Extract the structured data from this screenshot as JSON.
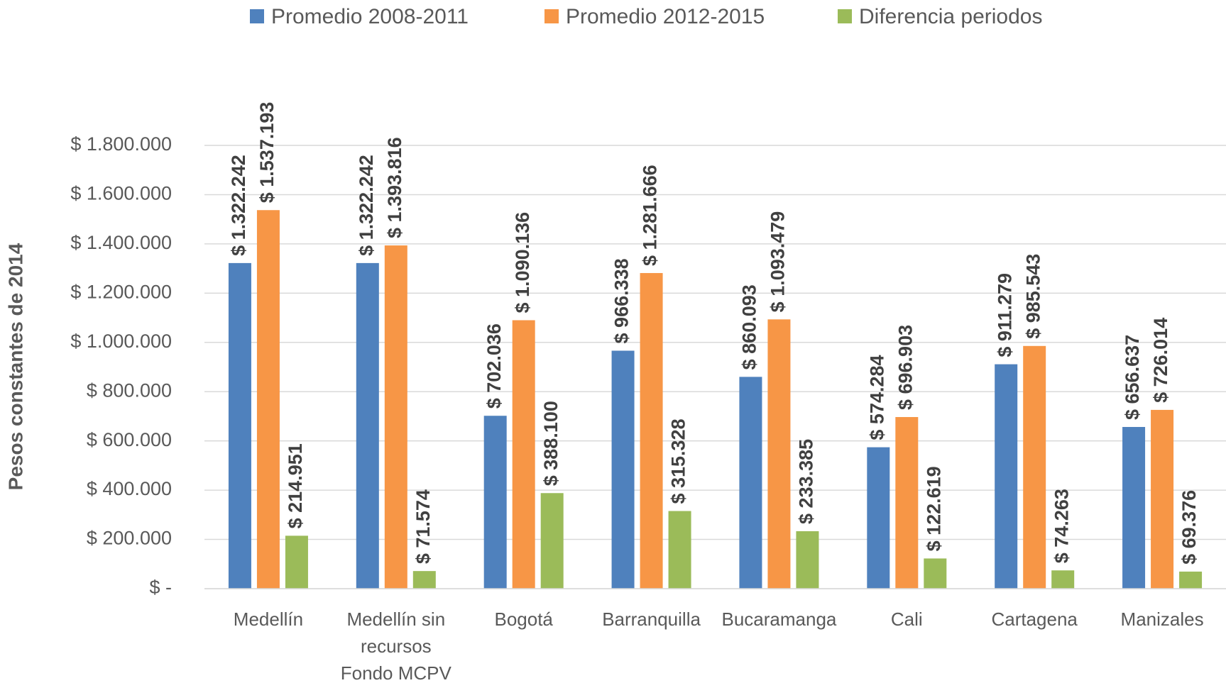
{
  "chart_data": {
    "type": "bar",
    "y_label": "Pesos constantes de 2014",
    "categories": [
      "Medellín",
      "Medellín sin recursos Fondo MCPV",
      "Bogotá",
      "Barranquilla",
      "Bucaramanga",
      "Cali",
      "Cartagena",
      "Manizales"
    ],
    "series": [
      {
        "name": "Promedio 2008-2011",
        "color": "#4f81bd",
        "values": [
          1322242,
          1322242,
          702036,
          966338,
          860093,
          574284,
          911279,
          656637
        ],
        "value_labels": [
          "$ 1.322.242",
          "$ 1.322.242",
          "$ 702.036",
          "$ 966.338",
          "$ 860.093",
          "$ 574.284",
          "$ 911.279",
          "$ 656.637"
        ]
      },
      {
        "name": "Promedio 2012-2015",
        "color": "#f79646",
        "values": [
          1537193,
          1393816,
          1090136,
          1281666,
          1093479,
          696903,
          985543,
          726014
        ],
        "value_labels": [
          "$ 1.537.193",
          "$ 1.393.816",
          "$ 1.090.136",
          "$ 1.281.666",
          "$ 1.093.479",
          "$ 696.903",
          "$ 985.543",
          "$ 726.014"
        ]
      },
      {
        "name": "Diferencia  periodos",
        "color": "#9bbb59",
        "values": [
          214951,
          71574,
          388100,
          315328,
          233385,
          122619,
          74263,
          69376
        ],
        "value_labels": [
          "$ 214.951",
          "$ 71.574",
          "$ 388.100",
          "$ 315.328",
          "$ 233.385",
          "$ 122.619",
          "$ 74.263",
          "$ 69.376"
        ]
      }
    ],
    "ylim": [
      0,
      1800000
    ],
    "yticks": [
      {
        "value": 0,
        "label": "$ -"
      },
      {
        "value": 200000,
        "label": "$ 200.000"
      },
      {
        "value": 400000,
        "label": "$ 400.000"
      },
      {
        "value": 600000,
        "label": "$ 600.000"
      },
      {
        "value": 800000,
        "label": "$ 800.000"
      },
      {
        "value": 1000000,
        "label": "$ 1.000.000"
      },
      {
        "value": 1200000,
        "label": "$ 1.200.000"
      },
      {
        "value": 1400000,
        "label": "$ 1.400.000"
      },
      {
        "value": 1600000,
        "label": "$ 1.600.000"
      },
      {
        "value": 1800000,
        "label": "$ 1.800.000"
      }
    ],
    "grid": true,
    "legend": "top"
  }
}
